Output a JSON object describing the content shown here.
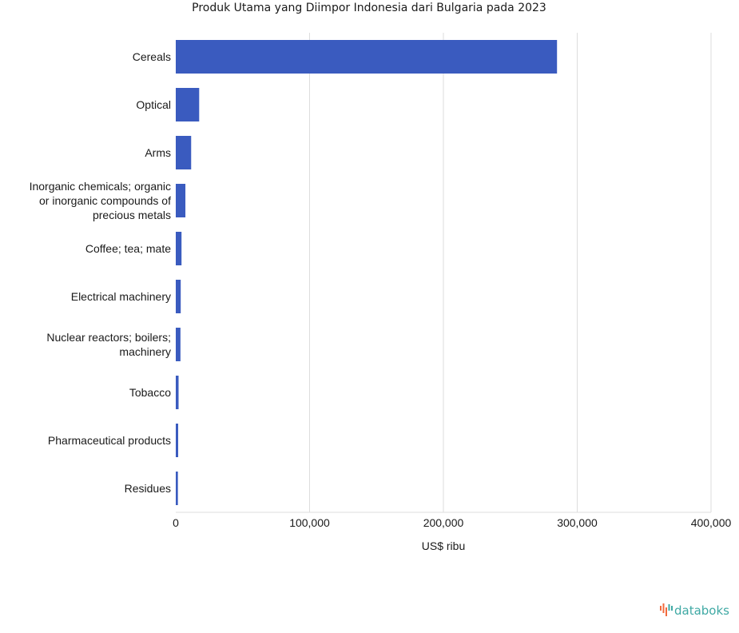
{
  "chart_data": {
    "type": "bar",
    "orientation": "horizontal",
    "title": "Produk Utama yang Diimpor Indonesia dari Bulgaria pada 2023",
    "xlabel": "US$ ribu",
    "ylabel": "",
    "categories": [
      "Cereals",
      "Optical",
      "Arms",
      "Inorganic chemicals; organic or inorganic compounds of precious metals",
      "Coffee; tea; mate",
      "Electrical machinery",
      "Nuclear reactors; boilers; machinery",
      "Tobacco",
      "Pharmaceutical products",
      "Residues"
    ],
    "category_lines": [
      [
        "Cereals"
      ],
      [
        "Optical"
      ],
      [
        "Arms"
      ],
      [
        "Inorganic chemicals; organic",
        "or inorganic compounds of",
        "precious metals"
      ],
      [
        "Coffee; tea; mate"
      ],
      [
        "Electrical machinery"
      ],
      [
        "Nuclear reactors; boilers;",
        "machinery"
      ],
      [
        "Tobacco"
      ],
      [
        "Pharmaceutical products"
      ],
      [
        "Residues"
      ]
    ],
    "values": [
      284900,
      17500,
      11500,
      7200,
      4300,
      3700,
      3500,
      2100,
      1800,
      1600
    ],
    "xlim": [
      0,
      400000
    ],
    "ticks": [
      0,
      100000,
      200000,
      300000,
      400000
    ],
    "tick_labels": [
      "0",
      "100,000",
      "200,000",
      "300,000",
      "400,000"
    ],
    "grid": true,
    "legend": "none",
    "bar_color": "#3a5bbf"
  },
  "branding": {
    "logo_text": "databoks",
    "logo_color": "#3fa9a4",
    "logo_accent": "#f26a3d"
  }
}
